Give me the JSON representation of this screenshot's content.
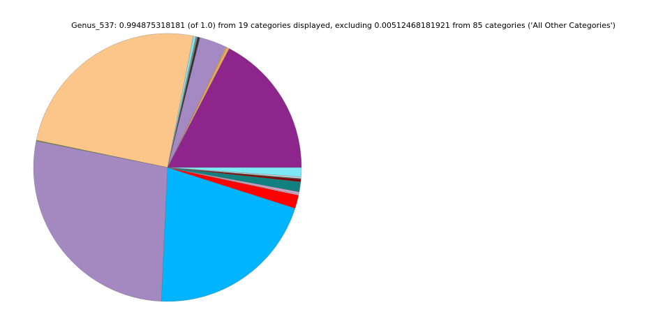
{
  "chart_data": {
    "type": "pie",
    "title": "Genus_537: 0.994875318181 (of 1.0) from 19 categories displayed, excluding 0.00512468181921 from 85 categories ('All Other Categories')",
    "values": [
      0.173,
      0.003,
      0.001,
      0.033,
      0.003,
      0.002,
      0.003,
      0.247,
      0.001,
      0.273,
      0.207,
      0.016,
      0.001,
      0.003,
      0.012,
      0.003,
      0.001,
      0.002,
      0.011
    ],
    "colors": [
      "#8e258d",
      "#f4a460",
      "#ffd700",
      "#a589c4",
      "#333333",
      "#888888",
      "#7ee8f5",
      "#fcc68b",
      "#6b8e23",
      "#a389c0",
      "#00b4ff",
      "#ff0000",
      "#ffc0cb",
      "#c8a2c8",
      "#138080",
      "#800000",
      "#2f4f4f",
      "#d3d3d3",
      "#7fe8f5"
    ]
  }
}
